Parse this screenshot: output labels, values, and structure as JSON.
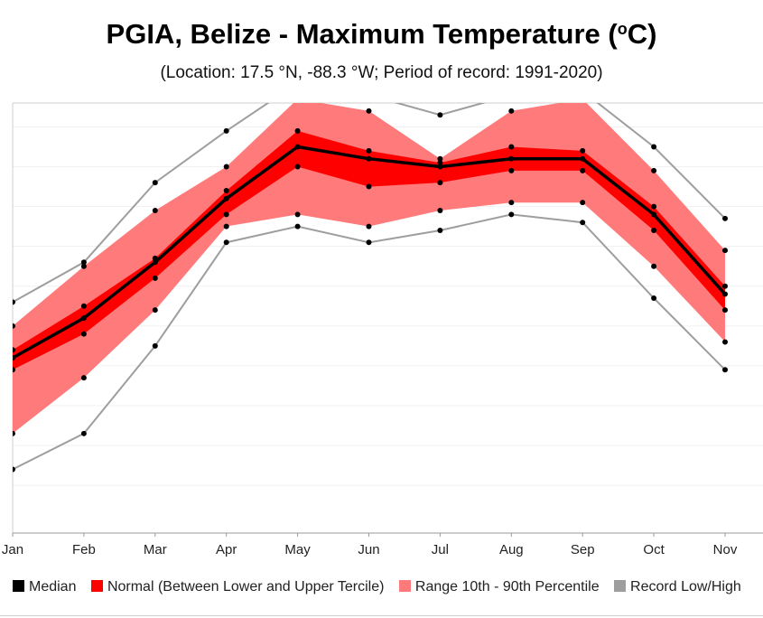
{
  "header": {
    "title_main": "PGIA, Belize - Maximum Temperature (",
    "title_sup": "o",
    "title_end": "C)",
    "subtitle": "(Location: 17.5 °N, -88.3 °W; Period of record: 1991-2020)"
  },
  "legend": {
    "median": "Median",
    "normal": "Normal (Between Lower and Upper Tercile)",
    "range": "Range 10th - 90th Percentile",
    "record": "Record Low/High"
  },
  "colors": {
    "median": "#000000",
    "normal": "#ff0000",
    "range": "#ff7b7b",
    "record": "#9e9e9e"
  },
  "chart_data": {
    "type": "area",
    "categories": [
      "Jan",
      "Feb",
      "Mar",
      "Apr",
      "May",
      "Jun",
      "Jul",
      "Aug",
      "Sep",
      "Oct",
      "Nov"
    ],
    "ylim": [
      23.8,
      34.6
    ],
    "grid": true,
    "legend_position": "bottom",
    "series": [
      {
        "name": "Median",
        "values": [
          28.2,
          29.2,
          30.6,
          32.2,
          33.5,
          33.2,
          33.0,
          33.2,
          33.2,
          31.8,
          29.8
        ]
      },
      {
        "name": "Lower Tercile",
        "values": [
          27.9,
          28.8,
          30.2,
          31.8,
          33.0,
          32.5,
          32.6,
          32.9,
          32.9,
          31.4,
          29.4
        ]
      },
      {
        "name": "Upper Tercile",
        "values": [
          28.4,
          29.5,
          30.7,
          32.4,
          33.9,
          33.4,
          33.1,
          33.5,
          33.4,
          32.0,
          30.0
        ]
      },
      {
        "name": "10th Percentile",
        "values": [
          26.3,
          27.7,
          29.4,
          31.5,
          31.8,
          31.5,
          31.9,
          32.1,
          32.1,
          30.5,
          28.6
        ]
      },
      {
        "name": "90th Percentile",
        "values": [
          29.0,
          30.5,
          31.9,
          33.0,
          34.7,
          34.4,
          33.2,
          34.4,
          34.7,
          32.9,
          30.9
        ]
      },
      {
        "name": "Record Low",
        "values": [
          25.4,
          26.3,
          28.5,
          31.1,
          31.5,
          31.1,
          31.4,
          31.8,
          31.6,
          29.7,
          27.9
        ]
      },
      {
        "name": "Record High",
        "values": [
          29.6,
          30.6,
          32.6,
          33.9,
          35.1,
          34.8,
          34.3,
          34.8,
          34.9,
          33.5,
          31.7
        ]
      }
    ]
  }
}
